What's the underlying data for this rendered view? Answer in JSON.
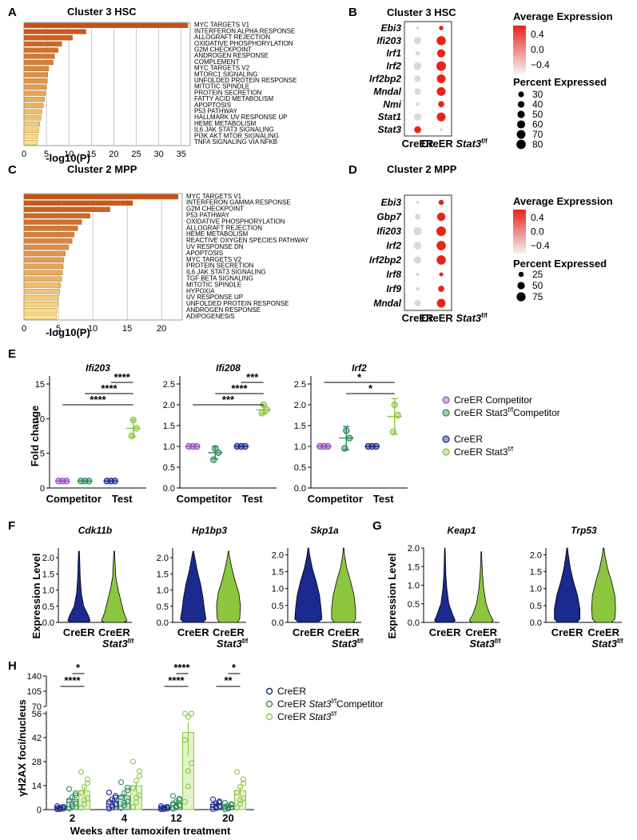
{
  "panels": {
    "A": "A",
    "B": "B",
    "C": "C",
    "D": "D",
    "E": "E",
    "F": "F",
    "G": "G",
    "H": "H"
  },
  "colors": {
    "creer": "#1a2a8e",
    "stat3": "#8cc63f",
    "competitor_purple": "#9b4fc0",
    "competitor_green": "#2e8b57",
    "dot_high": "#e8241a",
    "dot_low": "#d9d9d9"
  },
  "chart_data": [
    {
      "id": "A",
      "type": "bar",
      "orientation": "horizontal",
      "title": "Cluster 3 HSC",
      "xlabel": "-log10(P)",
      "xlim": [
        0,
        37
      ],
      "xticks": [
        "0",
        "5",
        "10",
        "15",
        "20",
        "25",
        "30",
        "35"
      ],
      "categories": [
        "MYC TARGETS V1",
        "INTERFERON ALPHA RESPONSE",
        "ALLOGRAFT REJECTION",
        "OXIDATIVE PHOSPHORYLATION",
        "G2M CHECKPOINT",
        "ANDROGEN RESPONSE",
        "COMPLEMENT",
        "MYC TARGETS V2",
        "MTORC1 SIGNALING",
        "UNFOLDED PROTEIN RESPONSE",
        "MITOTIC SPINDLE",
        "PROTEIN SECRETION",
        "FATTY ACID METABOLISM",
        "APOPTOSIS",
        "P53 PATHWAY",
        "HALLMARK UV RESPONSE UP",
        "HEME METABOLISM",
        "IL6 JAK STAT3 SIGNALING",
        "PI3K AKT MTOR SIGNALING",
        "TNFA SIGNALING VIA NFKB"
      ],
      "values": [
        36.5,
        13.8,
        10.8,
        8.4,
        7.6,
        6.8,
        6.5,
        5.5,
        5.3,
        5.2,
        5.0,
        4.8,
        4.6,
        4.3,
        4.0,
        3.8,
        3.5,
        3.3,
        3.1,
        3.0
      ]
    },
    {
      "id": "C",
      "type": "bar",
      "orientation": "horizontal",
      "title": "Cluster 2 MPP",
      "xlabel": "-log10(P)",
      "xlim": [
        0,
        23
      ],
      "xticks": [
        "0",
        "5",
        "10",
        "15",
        "20"
      ],
      "categories": [
        "MYC TARGETS V1",
        "INTERFERON GAMMA RESPONSE",
        "G2M CHECKPOINT",
        "P53 PATHWAY",
        "OXIDATIVE PHOSPHORYLATION",
        "ALLOGRAFT REJECTION",
        "HEME METABOLISM",
        "REACTIVE OXYGEN SPECIES PATHWAY",
        "UV RESPONSE DN",
        "APOPTOSIS",
        "MYC TARGETS V2",
        "PROTEIN SECRETION",
        "IL6 JAK STAT3 SIGNALING",
        "TGF BETA SIGNALING",
        "MITOTIC SPINDLE",
        "HYPOXIA",
        "UV RESPONSE UP",
        "UNFOLDED PROTEIN RESPONSE",
        "ANDROGEN RESPONSE",
        "ADIPOGENESIS"
      ],
      "values": [
        22.4,
        15.8,
        12.5,
        9.6,
        8.4,
        7.8,
        7.3,
        7.0,
        6.5,
        6.0,
        5.8,
        5.7,
        5.6,
        5.5,
        5.3,
        5.2,
        5.0,
        4.9,
        4.8,
        4.7
      ]
    },
    {
      "id": "B",
      "type": "dotplot",
      "title": "Cluster 3 HSC",
      "genes": [
        "Ebi3",
        "Ifi203",
        "Irf1",
        "Irf2",
        "Irf2bp2",
        "Mndal",
        "Nmi",
        "Stat1",
        "Stat3"
      ],
      "groups": [
        "CreER",
        "CreER Stat3f/f"
      ],
      "avg_expression": [
        [
          -0.5,
          0.5
        ],
        [
          -0.5,
          0.5
        ],
        [
          -0.5,
          0.5
        ],
        [
          -0.5,
          0.5
        ],
        [
          -0.5,
          0.5
        ],
        [
          -0.5,
          0.5
        ],
        [
          -0.5,
          0.5
        ],
        [
          -0.5,
          0.5
        ],
        [
          0.5,
          -0.5
        ]
      ],
      "pct_expressed": [
        [
          8,
          18
        ],
        [
          50,
          78
        ],
        [
          18,
          62
        ],
        [
          55,
          85
        ],
        [
          40,
          72
        ],
        [
          42,
          72
        ],
        [
          12,
          35
        ],
        [
          50,
          72
        ],
        [
          45,
          8
        ]
      ],
      "color_legend_title": "Average Expression",
      "color_ticks": [
        "0.4",
        "0.0",
        "−0.4"
      ],
      "size_legend_title": "Percent Expressed",
      "size_ticks": [
        "30",
        "40",
        "50",
        "60",
        "70",
        "80"
      ]
    },
    {
      "id": "D",
      "type": "dotplot",
      "title": "Cluster 2 MPP",
      "genes": [
        "Ebi3",
        "Gbp7",
        "Ifi203",
        "Irf2",
        "Irf2bp2",
        "Irf8",
        "Irf9",
        "Mndal"
      ],
      "groups": [
        "CreER",
        "CreER Stat3f/f"
      ],
      "avg_expression": [
        [
          -0.5,
          0.5
        ],
        [
          -0.5,
          0.5
        ],
        [
          -0.5,
          0.5
        ],
        [
          -0.5,
          0.5
        ],
        [
          -0.5,
          0.5
        ],
        [
          -0.5,
          0.5
        ],
        [
          -0.5,
          0.5
        ],
        [
          -0.5,
          0.5
        ]
      ],
      "pct_expressed": [
        [
          8,
          25
        ],
        [
          30,
          65
        ],
        [
          62,
          85
        ],
        [
          55,
          80
        ],
        [
          50,
          80
        ],
        [
          10,
          15
        ],
        [
          15,
          35
        ],
        [
          38,
          70
        ]
      ],
      "color_legend_title": "Average Expression",
      "color_ticks": [
        "0.4",
        "0.0",
        "−0.4"
      ],
      "size_legend_title": "Percent Expressed",
      "size_ticks": [
        "25",
        "50",
        "75"
      ]
    },
    {
      "id": "E",
      "type": "scatter",
      "ylabel": "Fold change",
      "xcategories": [
        "Competitor",
        "Test"
      ],
      "legend": [
        "CreER Competitor",
        "CreER Stat3f/f Competitor",
        "CreER",
        "CreER Stat3f/f"
      ],
      "subplots": [
        {
          "gene": "Ifi203",
          "ylim": [
            0,
            15
          ],
          "yticks": [
            "0",
            "5",
            "10",
            "15"
          ],
          "groups": [
            {
              "legend": 0,
              "x": 0,
              "points": [
                1,
                1,
                1
              ],
              "mean": 1
            },
            {
              "legend": 1,
              "x": 0,
              "points": [
                1,
                1,
                1
              ],
              "mean": 1
            },
            {
              "legend": 2,
              "x": 1,
              "points": [
                1,
                1,
                1
              ],
              "mean": 1
            },
            {
              "legend": 3,
              "x": 1,
              "points": [
                9.8,
                8.6,
                7.5
              ],
              "mean": 8.6,
              "sd": 1.2
            }
          ],
          "sig": [
            "****",
            "****",
            "****"
          ]
        },
        {
          "gene": "Ifi208",
          "ylim": [
            0,
            2.5
          ],
          "yticks": [
            "0.0",
            "0.5",
            "1.0",
            "1.5",
            "2.0",
            "2.5"
          ],
          "groups": [
            {
              "legend": 0,
              "x": 0,
              "points": [
                1,
                1,
                1
              ],
              "mean": 1
            },
            {
              "legend": 1,
              "x": 0,
              "points": [
                0.95,
                0.85,
                0.68
              ],
              "mean": 0.85,
              "sd": 0.15
            },
            {
              "legend": 2,
              "x": 1,
              "points": [
                1,
                1,
                1
              ],
              "mean": 1
            },
            {
              "legend": 3,
              "x": 1,
              "points": [
                2.0,
                1.88,
                1.8
              ],
              "mean": 1.88,
              "sd": 0.1
            }
          ],
          "sig": [
            "***",
            "****",
            "***"
          ]
        },
        {
          "gene": "Irf2",
          "ylim": [
            0,
            2.5
          ],
          "yticks": [
            "0.0",
            "0.5",
            "1.0",
            "1.5",
            "2.0",
            "2.5"
          ],
          "groups": [
            {
              "legend": 0,
              "x": 0,
              "points": [
                1,
                1,
                1
              ],
              "mean": 1
            },
            {
              "legend": 1,
              "x": 0,
              "points": [
                1.38,
                1.2,
                0.95
              ],
              "mean": 1.2,
              "sd": 0.28
            },
            {
              "legend": 2,
              "x": 1,
              "points": [
                1,
                1,
                1
              ],
              "mean": 1
            },
            {
              "legend": 3,
              "x": 1,
              "points": [
                2.0,
                1.75,
                1.35
              ],
              "mean": 1.72,
              "sd": 0.43
            }
          ],
          "sig": [
            "*",
            "*"
          ]
        }
      ]
    },
    {
      "id": "FG",
      "type": "violin",
      "ylabel": "Expression Level",
      "xcategories": [
        "CreER",
        "CreER Stat3f/f"
      ],
      "subplots": [
        {
          "gene": "Cdk11b",
          "ylim": [
            0,
            2.3
          ],
          "yticks": [
            "0.0",
            "0.5",
            "1.0",
            "1.5",
            "2.0"
          ]
        },
        {
          "gene": "Hp1bp3",
          "ylim": [
            0,
            2.3
          ],
          "yticks": [
            "0.0",
            "0.5",
            "1.0",
            "1.5",
            "2.0"
          ]
        },
        {
          "gene": "Skp1a",
          "ylim": [
            0,
            2.2
          ],
          "yticks": [
            "0.0",
            "0.5",
            "1.0",
            "1.5",
            "2.0"
          ]
        },
        {
          "gene": "Keap1",
          "ylim": [
            0,
            2.0
          ],
          "yticks": [
            "0.0",
            "0.5",
            "1.0",
            "1.5",
            "2.0"
          ]
        },
        {
          "gene": "Trp53",
          "ylim": [
            0,
            2.2
          ],
          "yticks": [
            "0.0",
            "0.5",
            "1.0",
            "1.5",
            "2.0"
          ]
        }
      ]
    },
    {
      "id": "H",
      "type": "bar",
      "title": "",
      "xlabel": "Weeks after tamoxifen treatment",
      "ylabel": "γH2AX foci/nucleus",
      "categories": [
        "2",
        "4",
        "12",
        "20"
      ],
      "yticks_lower": [
        "0",
        "14",
        "28",
        "42",
        "56"
      ],
      "yticks_upper": [
        "70",
        "105",
        "140"
      ],
      "series": [
        {
          "name": "CreER",
          "values": [
            1,
            5,
            1,
            3
          ]
        },
        {
          "name": "CreER Stat3f/f Competitor",
          "values": [
            6,
            8,
            4,
            2
          ]
        },
        {
          "name": "CreER Stat3f/f",
          "values": [
            11,
            14,
            45,
            11
          ]
        }
      ],
      "sig": [
        "*",
        "****",
        "****",
        "****",
        "*",
        "**"
      ]
    }
  ]
}
